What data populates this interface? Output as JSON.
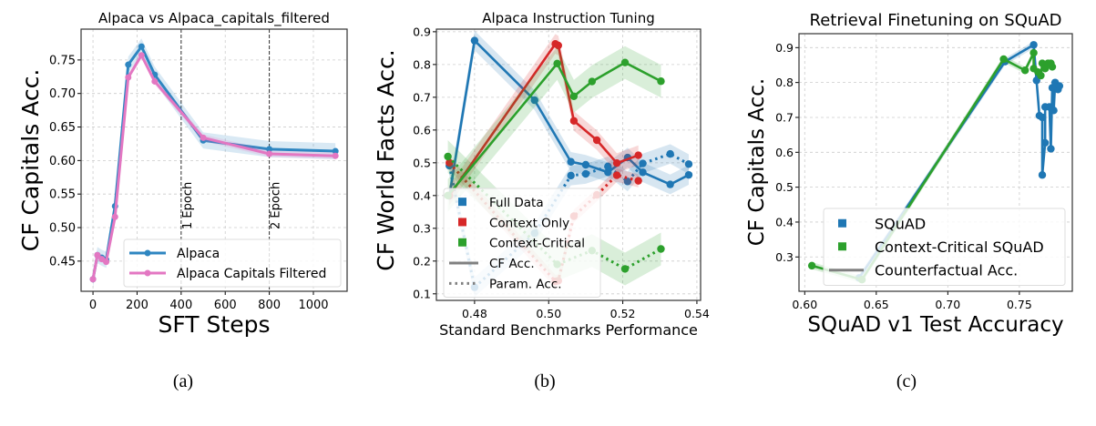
{
  "captions": [
    "(a)",
    "(b)",
    "(c)"
  ],
  "chart_data": [
    {
      "type": "line",
      "title": "Alpaca vs Alpaca_capitals_filtered",
      "xlabel": "SFT Steps",
      "ylabel": "CF Capitals Acc.",
      "xlim": [
        -54,
        1153
      ],
      "ylim": [
        0.405,
        0.796
      ],
      "xticks": [
        0,
        200,
        400,
        600,
        800,
        1000
      ],
      "yticks": [
        0.45,
        0.5,
        0.55,
        0.6,
        0.65,
        0.7,
        0.75
      ],
      "xtick_labels": [
        "0",
        "200",
        "400",
        "600",
        "800",
        "1000"
      ],
      "ytick_labels": [
        "0.45",
        "0.50",
        "0.55",
        "0.60",
        "0.65",
        "0.70",
        "0.75"
      ],
      "grid": true,
      "legend_placement": "lower right",
      "vlines": [
        {
          "x": 400,
          "label": "1 Epoch"
        },
        {
          "x": 800,
          "label": "2 Epoch"
        }
      ],
      "series": [
        {
          "name": "Alpaca",
          "color": "#2e86c1",
          "style": "solid",
          "band": 0.012,
          "x": [
            0,
            20,
            40,
            60,
            100,
            160,
            220,
            280,
            500,
            800,
            1100
          ],
          "y": [
            0.423,
            0.459,
            0.455,
            0.452,
            0.532,
            0.743,
            0.77,
            0.728,
            0.63,
            0.617,
            0.614
          ]
        },
        {
          "name": "Alpaca Capitals Filtered",
          "color": "#e377c2",
          "style": "solid",
          "band": 0.005,
          "x": [
            0,
            20,
            40,
            60,
            100,
            160,
            220,
            280,
            500,
            800,
            1100
          ],
          "y": [
            0.423,
            0.459,
            0.453,
            0.449,
            0.516,
            0.724,
            0.757,
            0.718,
            0.634,
            0.61,
            0.607
          ]
        }
      ],
      "legend": [
        {
          "label": "Alpaca",
          "color": "#2e86c1",
          "style": "solid"
        },
        {
          "label": "Alpaca Capitals Filtered",
          "color": "#e377c2",
          "style": "solid"
        }
      ]
    },
    {
      "type": "line",
      "title": "Alpaca Instruction Tuning",
      "xlabel": "Standard Benchmarks Performance",
      "ylabel": "CF World Facts Acc.",
      "xlim": [
        0.4697,
        0.541
      ],
      "ylim": [
        0.08,
        0.908
      ],
      "xticks": [
        0.48,
        0.5,
        0.52,
        0.54
      ],
      "yticks": [
        0.1,
        0.2,
        0.3,
        0.4,
        0.5,
        0.6,
        0.7,
        0.8,
        0.9
      ],
      "xtick_labels": [
        "0.48",
        "0.50",
        "0.52",
        "0.54"
      ],
      "ytick_labels": [
        "0.1",
        "0.2",
        "0.3",
        "0.4",
        "0.5",
        "0.6",
        "0.7",
        "0.8",
        "0.9"
      ],
      "grid": true,
      "legend_placement": "lower left",
      "series": [
        {
          "name": "Full Data",
          "metric": "CF Acc.",
          "color": "#1f77b4",
          "style": "solid",
          "band": 0.03,
          "x": [
            0.4732,
            0.48,
            0.4962,
            0.506,
            0.51,
            0.516,
            0.5213,
            0.5254,
            0.5328,
            0.5378
          ],
          "y": [
            0.399,
            0.873,
            0.691,
            0.503,
            0.494,
            0.471,
            0.516,
            0.471,
            0.434,
            0.463
          ]
        },
        {
          "name": "Full Data",
          "metric": "Param. Acc.",
          "color": "#1f77b4",
          "style": "dotted",
          "band": 0.03,
          "x": [
            0.4732,
            0.48,
            0.4962,
            0.506,
            0.51,
            0.516,
            0.5213,
            0.5254,
            0.5328,
            0.5378
          ],
          "y": [
            0.491,
            0.12,
            0.285,
            0.461,
            0.466,
            0.489,
            0.443,
            0.498,
            0.527,
            0.496
          ]
        },
        {
          "name": "Context Only",
          "metric": "CF Acc.",
          "color": "#d62728",
          "style": "solid",
          "band": 0.03,
          "x": [
            0.4732,
            0.5018,
            0.5026,
            0.5068,
            0.513,
            0.5184,
            0.5242
          ],
          "y": [
            0.4,
            0.863,
            0.858,
            0.628,
            0.569,
            0.499,
            0.523
          ]
        },
        {
          "name": "Context Only",
          "metric": "Param. Acc.",
          "color": "#d62728",
          "style": "dotted",
          "band": 0.02,
          "x": [
            0.4732,
            0.5018,
            0.5026,
            0.5068,
            0.513,
            0.5184,
            0.5242
          ],
          "y": [
            0.5,
            0.138,
            0.14,
            0.337,
            0.402,
            0.462,
            0.445
          ]
        },
        {
          "name": "Context-Critical",
          "metric": "CF Acc.",
          "color": "#2ca02c",
          "style": "solid",
          "band": 0.05,
          "x": [
            0.4728,
            0.5023,
            0.5068,
            0.5117,
            0.5206,
            0.5303
          ],
          "y": [
            0.4,
            0.803,
            0.703,
            0.748,
            0.806,
            0.749
          ]
        },
        {
          "name": "Context-Critical",
          "metric": "Param. Acc.",
          "color": "#2ca02c",
          "style": "dotted",
          "band": 0.05,
          "x": [
            0.4728,
            0.5023,
            0.5117,
            0.5206,
            0.5303
          ],
          "y": [
            0.519,
            0.19,
            0.232,
            0.176,
            0.237
          ]
        }
      ],
      "legend": [
        {
          "label": "Full Data",
          "color": "#1f77b4",
          "style": "square"
        },
        {
          "label": "Context Only",
          "color": "#d62728",
          "style": "square"
        },
        {
          "label": "Context-Critical",
          "color": "#2ca02c",
          "style": "square"
        },
        {
          "label": "CF Acc.",
          "color": "#808080",
          "style": "solid"
        },
        {
          "label": "Param. Acc.",
          "color": "#808080",
          "style": "dotted"
        }
      ]
    },
    {
      "type": "line",
      "title": "Retrieval Finetuning on SQuAD",
      "xlabel": "SQuAD v1 Test Accuracy",
      "ylabel": "CF Capitals Acc.",
      "xlim": [
        0.596,
        0.787
      ],
      "ylim": [
        0.2016,
        0.94
      ],
      "xticks": [
        0.6,
        0.65,
        0.7,
        0.75
      ],
      "yticks": [
        0.3,
        0.4,
        0.5,
        0.6,
        0.7,
        0.8,
        0.9
      ],
      "xtick_labels": [
        "0.60",
        "0.65",
        "0.70",
        "0.75"
      ],
      "ytick_labels": [
        "0.3",
        "0.4",
        "0.5",
        "0.6",
        "0.7",
        "0.8",
        "0.9"
      ],
      "grid": true,
      "legend_placement": "lower right",
      "series": [
        {
          "name": "SQuAD",
          "color": "#1f77b4",
          "style": "solid",
          "band": 0.01,
          "x": [
            0.638,
            0.74,
            0.76,
            0.762,
            0.764,
            0.766,
            0.766,
            0.768,
            0.768,
            0.771,
            0.772,
            0.773,
            0.774,
            0.775,
            0.777,
            0.778
          ],
          "y": [
            0.24,
            0.86,
            0.908,
            0.806,
            0.705,
            0.7,
            0.535,
            0.627,
            0.73,
            0.73,
            0.61,
            0.785,
            0.72,
            0.8,
            0.78,
            0.79
          ]
        },
        {
          "name": "Context-Critical SQuAD",
          "color": "#2ca02c",
          "style": "solid",
          "band": 0.01,
          "x": [
            0.605,
            0.64,
            0.739,
            0.754,
            0.76,
            0.76,
            0.763,
            0.765,
            0.766,
            0.768,
            0.77,
            0.772,
            0.773
          ],
          "y": [
            0.275,
            0.235,
            0.867,
            0.835,
            0.885,
            0.84,
            0.83,
            0.82,
            0.855,
            0.84,
            0.855,
            0.855,
            0.845
          ]
        }
      ],
      "legend": [
        {
          "label": "SQuAD",
          "color": "#1f77b4",
          "style": "square"
        },
        {
          "label": "Context-Critical SQuAD",
          "color": "#2ca02c",
          "style": "square"
        },
        {
          "label": "Counterfactual Acc.",
          "color": "#808080",
          "style": "solid"
        }
      ]
    }
  ]
}
